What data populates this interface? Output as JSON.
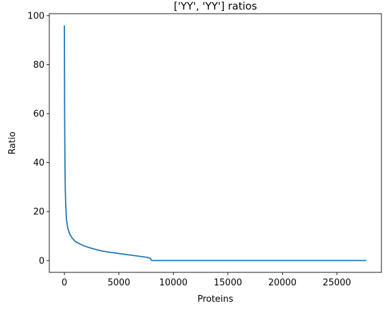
{
  "chart_data": {
    "type": "line",
    "title": "['YY', 'YY'] ratios",
    "xlabel": "Proteins",
    "ylabel": "Ratio",
    "xlim": [
      -1385,
      29085
    ],
    "ylim": [
      -4.8,
      100.8
    ],
    "xticks": [
      0,
      5000,
      10000,
      15000,
      20000,
      25000
    ],
    "yticks": [
      0,
      20,
      40,
      60,
      80,
      100
    ],
    "grid": false,
    "color": "#1f77b4",
    "series": [
      {
        "x": [
          0,
          20,
          50,
          80,
          120,
          160,
          200,
          300,
          400,
          500,
          700,
          1000,
          1500,
          2000,
          2500,
          3000,
          3500,
          4000,
          5000,
          6000,
          7000,
          7600,
          7900,
          7950,
          8000,
          8100,
          10000,
          15000,
          20000,
          25000,
          27700
        ],
        "y": [
          96,
          60,
          40,
          29,
          23,
          19.5,
          16.5,
          13.5,
          12,
          10.8,
          9.3,
          7.8,
          6.6,
          5.7,
          5.0,
          4.4,
          3.9,
          3.5,
          2.9,
          2.3,
          1.7,
          1.3,
          0.9,
          0.3,
          0.05,
          0.05,
          0.05,
          0.05,
          0.05,
          0.05,
          0.05
        ]
      }
    ]
  }
}
